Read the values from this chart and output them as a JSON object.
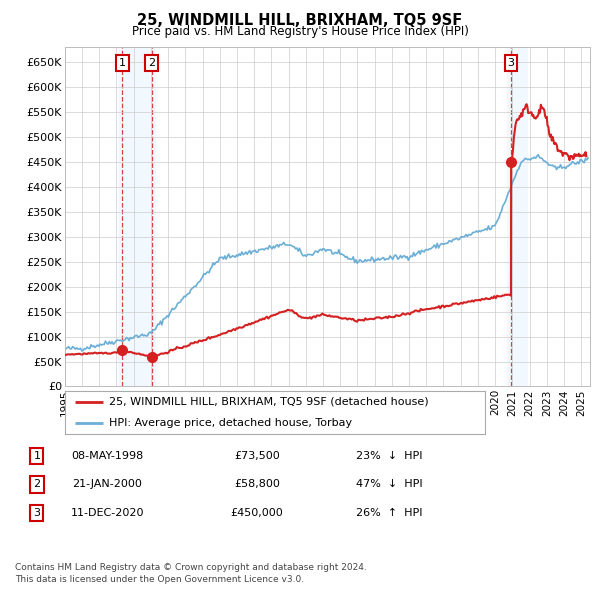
{
  "title": "25, WINDMILL HILL, BRIXHAM, TQ5 9SF",
  "subtitle": "Price paid vs. HM Land Registry's House Price Index (HPI)",
  "legend_line1": "25, WINDMILL HILL, BRIXHAM, TQ5 9SF (detached house)",
  "legend_line2": "HPI: Average price, detached house, Torbay",
  "footer1": "Contains HM Land Registry data © Crown copyright and database right 2024.",
  "footer2": "This data is licensed under the Open Government Licence v3.0.",
  "transactions": [
    {
      "num": 1,
      "date": "08-MAY-1998",
      "price": 73500,
      "pct": "23%",
      "dir": "↓",
      "year": 1998.35
    },
    {
      "num": 2,
      "date": "21-JAN-2000",
      "price": 58800,
      "pct": "47%",
      "dir": "↓",
      "year": 2000.05
    },
    {
      "num": 3,
      "date": "11-DEC-2020",
      "price": 450000,
      "pct": "26%",
      "dir": "↑",
      "year": 2020.93
    }
  ],
  "hpi_color": "#6baed6",
  "price_color": "#d42020",
  "highlight_color": "#ddeeff",
  "dashed_color": "#d42020",
  "background_color": "#ffffff",
  "grid_color": "#cccccc",
  "ylim": [
    0,
    680000
  ],
  "xlim_start": 1995.0,
  "xlim_end": 2025.5,
  "yticks": [
    0,
    50000,
    100000,
    150000,
    200000,
    250000,
    300000,
    350000,
    400000,
    450000,
    500000,
    550000,
    600000,
    650000
  ],
  "ytick_labels": [
    "£0",
    "£50K",
    "£100K",
    "£150K",
    "£200K",
    "£250K",
    "£300K",
    "£350K",
    "£400K",
    "£450K",
    "£500K",
    "£550K",
    "£600K",
    "£650K"
  ],
  "xticks": [
    1995,
    1996,
    1997,
    1998,
    1999,
    2000,
    2001,
    2002,
    2003,
    2004,
    2005,
    2006,
    2007,
    2008,
    2009,
    2010,
    2011,
    2012,
    2013,
    2014,
    2015,
    2016,
    2017,
    2018,
    2019,
    2020,
    2021,
    2022,
    2023,
    2024,
    2025
  ]
}
